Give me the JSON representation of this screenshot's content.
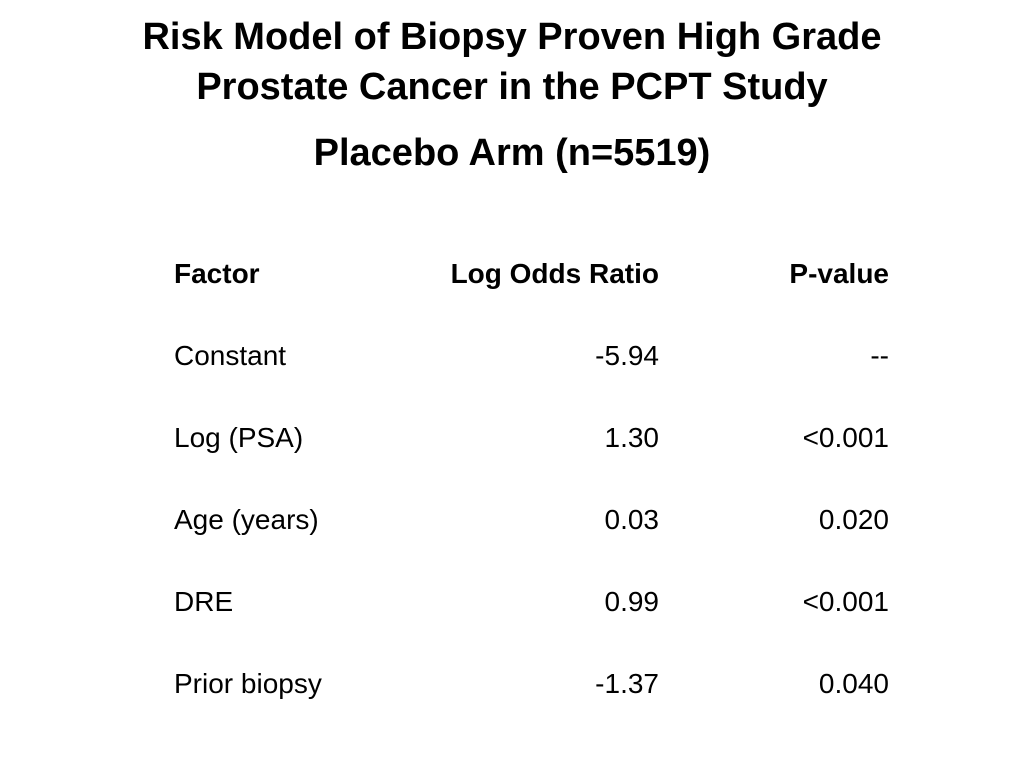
{
  "title": {
    "line1": "Risk Model of Biopsy Proven High Grade",
    "line2": "Prostate Cancer in the PCPT Study",
    "subtitle": "Placebo Arm (n=5519)"
  },
  "table": {
    "headers": {
      "factor": "Factor",
      "log_odds_ratio": "Log Odds Ratio",
      "p_value": "P-value"
    },
    "rows": [
      {
        "factor": "Constant",
        "log_odds_ratio": "-5.94",
        "p_value": "--"
      },
      {
        "factor": "Log (PSA)",
        "log_odds_ratio": "1.30",
        "p_value": "<0.001"
      },
      {
        "factor": "Age (years)",
        "log_odds_ratio": "0.03",
        "p_value": "0.020"
      },
      {
        "factor": "DRE",
        "log_odds_ratio": "0.99",
        "p_value": "<0.001"
      },
      {
        "factor": "Prior biopsy",
        "log_odds_ratio": "-1.37",
        "p_value": "0.040"
      }
    ]
  }
}
